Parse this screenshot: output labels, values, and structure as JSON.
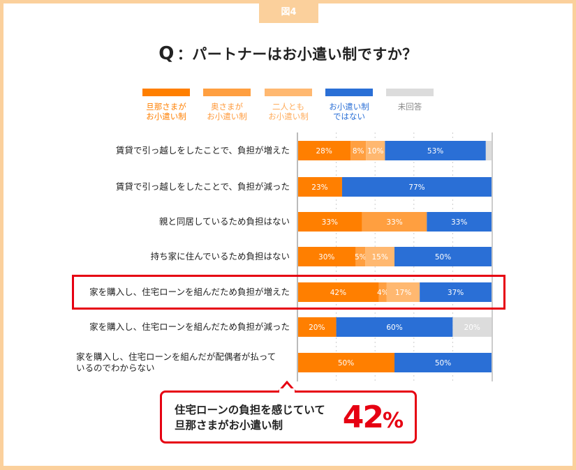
{
  "figure_label": "図4",
  "title": {
    "q": "Q",
    "text": "：パートナーはお小遣い制ですか？"
  },
  "legend": [
    {
      "line1": "旦那さまが",
      "line2": "お小遣い制",
      "color": "#ff7f00",
      "text_color": "#ff7f00"
    },
    {
      "line1": "奥さまが",
      "line2": "お小遣い制",
      "color": "#ff9f40",
      "text_color": "#ff9a3c"
    },
    {
      "line1": "二人とも",
      "line2": "お小遣い制",
      "color": "#ffb870",
      "text_color": "#ffac5c"
    },
    {
      "line1": "お小遣い制",
      "line2": "ではない",
      "color": "#2a6fd6",
      "text_color": "#2a6fd6"
    },
    {
      "line1": "未回答",
      "line2": "",
      "color": "#dcdcdc",
      "text_color": "#888888"
    }
  ],
  "chart_data": {
    "type": "bar",
    "stacked": true,
    "orientation": "horizontal",
    "title": "パートナーはお小遣い制ですか？",
    "categories": [
      "賃貸で引っ越しをしたことで、負担が増えた",
      "賃貸で引っ越しをしたことで、負担が減った",
      "親と同居しているため負担はない",
      "持ち家に住んでいるため負担はない",
      "家を購入し、住宅ローンを組んだため負担が増えた",
      "家を購入し、住宅ローンを組んだため負担が減った",
      "家を購入し、住宅ローンを組んだが配偶者が払っているのでわからない"
    ],
    "series": [
      {
        "name": "旦那さまがお小遣い制",
        "values": [
          28,
          23,
          33,
          30,
          42,
          20,
          50
        ]
      },
      {
        "name": "奥さまがお小遣い制",
        "values": [
          8,
          0,
          33,
          5,
          4,
          0,
          0
        ]
      },
      {
        "name": "二人ともお小遣い制",
        "values": [
          10,
          0,
          0,
          15,
          17,
          0,
          0
        ]
      },
      {
        "name": "お小遣い制ではない",
        "values": [
          53,
          77,
          33,
          50,
          37,
          60,
          50
        ]
      },
      {
        "name": "未回答",
        "values": [
          3,
          0,
          0,
          0,
          0,
          20,
          0
        ]
      }
    ],
    "unit": "%",
    "highlight_category": "家を購入し、住宅ローンを組んだため負担が増えた"
  },
  "row_labels": [
    [
      "賃貸で引っ越しをしたことで、負担が増えた"
    ],
    [
      "賃貸で引っ越しをしたことで、負担が減った"
    ],
    [
      "親と同居しているため負担はない"
    ],
    [
      "持ち家に住んでいるため負担はない"
    ],
    [
      "家を購入し、住宅ローンを組んだため負担が増えた"
    ],
    [
      "家を購入し、住宅ローンを組んだため負担が減った"
    ],
    [
      "家を購入し、住宅ローンを組んだが配偶者が払って",
      "いるのでわからない"
    ]
  ],
  "callout": {
    "line1": "住宅ローンの負担を感じていて",
    "line2": "旦那さまがお小遣い制",
    "value": "42",
    "unit": "%"
  }
}
